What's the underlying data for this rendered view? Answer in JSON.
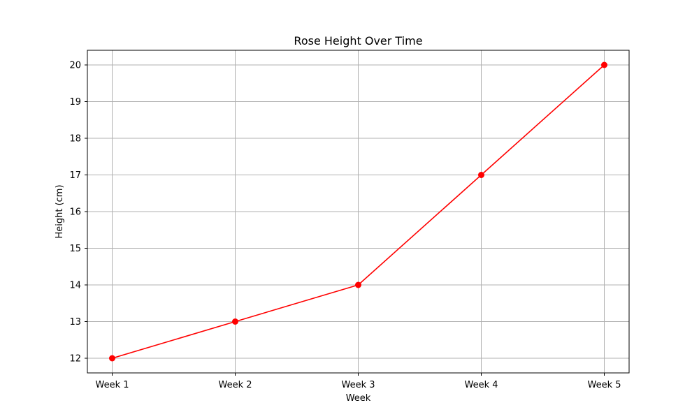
{
  "chart_data": {
    "type": "line",
    "title": "Rose Height Over Time",
    "xlabel": "Week",
    "ylabel": "Height (cm)",
    "categories": [
      "Week 1",
      "Week 2",
      "Week 3",
      "Week 4",
      "Week 5"
    ],
    "series": [
      {
        "values": [
          12,
          13,
          14,
          17,
          20
        ],
        "color": "#ff0000",
        "marker": "circle"
      }
    ],
    "yticks": [
      12,
      13,
      14,
      15,
      16,
      17,
      18,
      19,
      20
    ],
    "ylim": [
      11.6,
      20.4
    ],
    "grid": true,
    "grid_color": "#b0b0b0",
    "legend": "none"
  }
}
